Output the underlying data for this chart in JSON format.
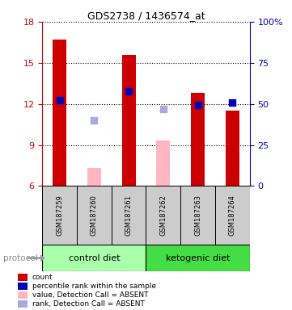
{
  "title": "GDS2738 / 1436574_at",
  "samples": [
    "GSM187259",
    "GSM187260",
    "GSM187261",
    "GSM187262",
    "GSM187263",
    "GSM187264"
  ],
  "bar_values": [
    16.7,
    7.3,
    15.6,
    9.3,
    12.8,
    11.5
  ],
  "bar_absent": [
    false,
    true,
    false,
    true,
    false,
    false
  ],
  "rank_values": [
    12.3,
    10.8,
    12.9,
    11.6,
    11.9,
    12.1
  ],
  "rank_absent": [
    false,
    true,
    false,
    true,
    false,
    false
  ],
  "ylim_left": [
    6,
    18
  ],
  "ylim_right": [
    0,
    100
  ],
  "yticks_left": [
    6,
    9,
    12,
    15,
    18
  ],
  "yticks_right": [
    0,
    25,
    50,
    75,
    100
  ],
  "ytick_labels_right": [
    "0",
    "25",
    "50",
    "75",
    "100%"
  ],
  "bar_color_present": "#CC0000",
  "bar_color_absent": "#FFB6C1",
  "rank_color_present": "#0000BB",
  "rank_color_absent": "#AAAADD",
  "bar_width": 0.4,
  "rank_marker_size": 35,
  "protocol_label": "protocol",
  "legend_items": [
    {
      "color": "#CC0000",
      "label": "count"
    },
    {
      "color": "#0000BB",
      "label": "percentile rank within the sample"
    },
    {
      "color": "#FFB6C1",
      "label": "value, Detection Call = ABSENT"
    },
    {
      "color": "#AAAADD",
      "label": "rank, Detection Call = ABSENT"
    }
  ],
  "group_control_color": "#AAFFAA",
  "group_keto_color": "#44DD44",
  "sample_box_color": "#CCCCCC",
  "background_color": "#FFFFFF",
  "axis_color_left": "#CC0000",
  "axis_color_right": "#0000BB"
}
